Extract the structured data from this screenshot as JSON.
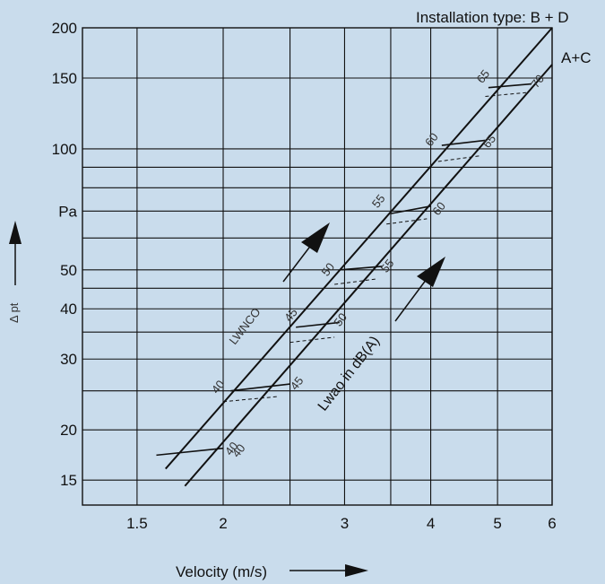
{
  "chart_data": {
    "type": "line",
    "x_scale": "log",
    "y_scale": "log",
    "xlim": [
      1.25,
      6
    ],
    "ylim": [
      13,
      200
    ],
    "grid": true,
    "title": "Installation type: B + D",
    "xlabel": "Velocity (m/s)",
    "ylabel": "Δ pt",
    "x_ticks": [
      {
        "value": 1.5,
        "label": "1.5"
      },
      {
        "value": 2,
        "label": "2"
      },
      {
        "value": 3,
        "label": "3"
      },
      {
        "value": 4,
        "label": "4"
      },
      {
        "value": 5,
        "label": "5"
      },
      {
        "value": 6,
        "label": "6"
      }
    ],
    "x_gridlines": [
      1.5,
      2,
      2.5,
      3,
      3.5,
      4,
      5,
      6
    ],
    "y_ticks": [
      {
        "value": 15,
        "label": "15"
      },
      {
        "value": 20,
        "label": "20"
      },
      {
        "value": 30,
        "label": "30"
      },
      {
        "value": 40,
        "label": "40"
      },
      {
        "value": 50,
        "label": "50"
      },
      {
        "value": 70,
        "label": "Pa"
      },
      {
        "value": 100,
        "label": "100"
      },
      {
        "value": 150,
        "label": "150"
      },
      {
        "value": 200,
        "label": "200"
      }
    ],
    "y_gridlines": [
      15,
      20,
      25,
      30,
      35,
      40,
      45,
      50,
      60,
      70,
      80,
      90,
      100,
      150,
      200
    ],
    "series": [
      {
        "name": "B + D",
        "x": [
          1.65,
          6
        ],
        "y": [
          16,
          200
        ]
      },
      {
        "name": "A+C",
        "x": [
          1.76,
          6
        ],
        "y": [
          14.5,
          162
        ]
      }
    ],
    "lwnco_label": "LWNCO",
    "lwao_label": "Lwao in dB(A)",
    "lwnco_ticks": [
      {
        "label": "40",
        "solid": [
          [
            1.6,
            17.3
          ],
          [
            2.0,
            18
          ]
        ],
        "dashed": null,
        "label_pos": [
          2.1,
          17.0
        ]
      },
      {
        "label": "40",
        "solid": [
          [
            2.05,
            25
          ],
          [
            2.5,
            26
          ]
        ],
        "dashed": [
          [
            2.0,
            23.5
          ],
          [
            2.4,
            24.2
          ]
        ],
        "label_pos": [
          1.96,
          24.5
        ]
      },
      {
        "label": "45",
        "solid": [
          [
            2.55,
            36
          ],
          [
            2.95,
            37
          ]
        ],
        "dashed": [
          [
            2.5,
            33
          ],
          [
            2.9,
            34
          ]
        ],
        "label_pos": [
          2.5,
          37
        ]
      },
      {
        "label": "50",
        "solid": [
          [
            2.95,
            50
          ],
          [
            3.4,
            51
          ]
        ],
        "dashed": [
          [
            2.9,
            46
          ],
          [
            3.35,
            47.5
          ]
        ],
        "label_pos": [
          2.83,
          48
        ]
      },
      {
        "label": "55",
        "solid": [
          [
            3.5,
            69
          ],
          [
            4.0,
            72
          ]
        ],
        "dashed": [
          [
            3.45,
            65
          ],
          [
            3.95,
            67
          ]
        ],
        "label_pos": [
          3.35,
          71
        ]
      },
      {
        "label": "60",
        "solid": [
          [
            4.15,
            102
          ],
          [
            4.8,
            105
          ]
        ],
        "dashed": [
          [
            4.1,
            93
          ],
          [
            4.7,
            96
          ]
        ],
        "label_pos": [
          4.0,
          101
        ]
      },
      {
        "label": "65",
        "solid": [
          [
            4.85,
            142
          ],
          [
            5.6,
            145
          ]
        ],
        "dashed": [
          [
            4.8,
            135
          ],
          [
            5.5,
            138
          ]
        ],
        "label_pos": [
          4.75,
          145
        ]
      }
    ],
    "lwao_labels": [
      {
        "label": "40",
        "pos": [
          2.05,
          17.2
        ]
      },
      {
        "label": "45",
        "pos": [
          2.55,
          25
        ]
      },
      {
        "label": "50",
        "pos": [
          2.95,
          36
        ]
      },
      {
        "label": "55",
        "pos": [
          3.45,
          49
        ]
      },
      {
        "label": "60",
        "pos": [
          4.1,
          68
        ]
      },
      {
        "label": "65",
        "pos": [
          4.85,
          100
        ]
      },
      {
        "label": "70",
        "pos": [
          5.7,
          141
        ]
      }
    ],
    "series_labels": [
      {
        "label": "A+C"
      }
    ]
  }
}
